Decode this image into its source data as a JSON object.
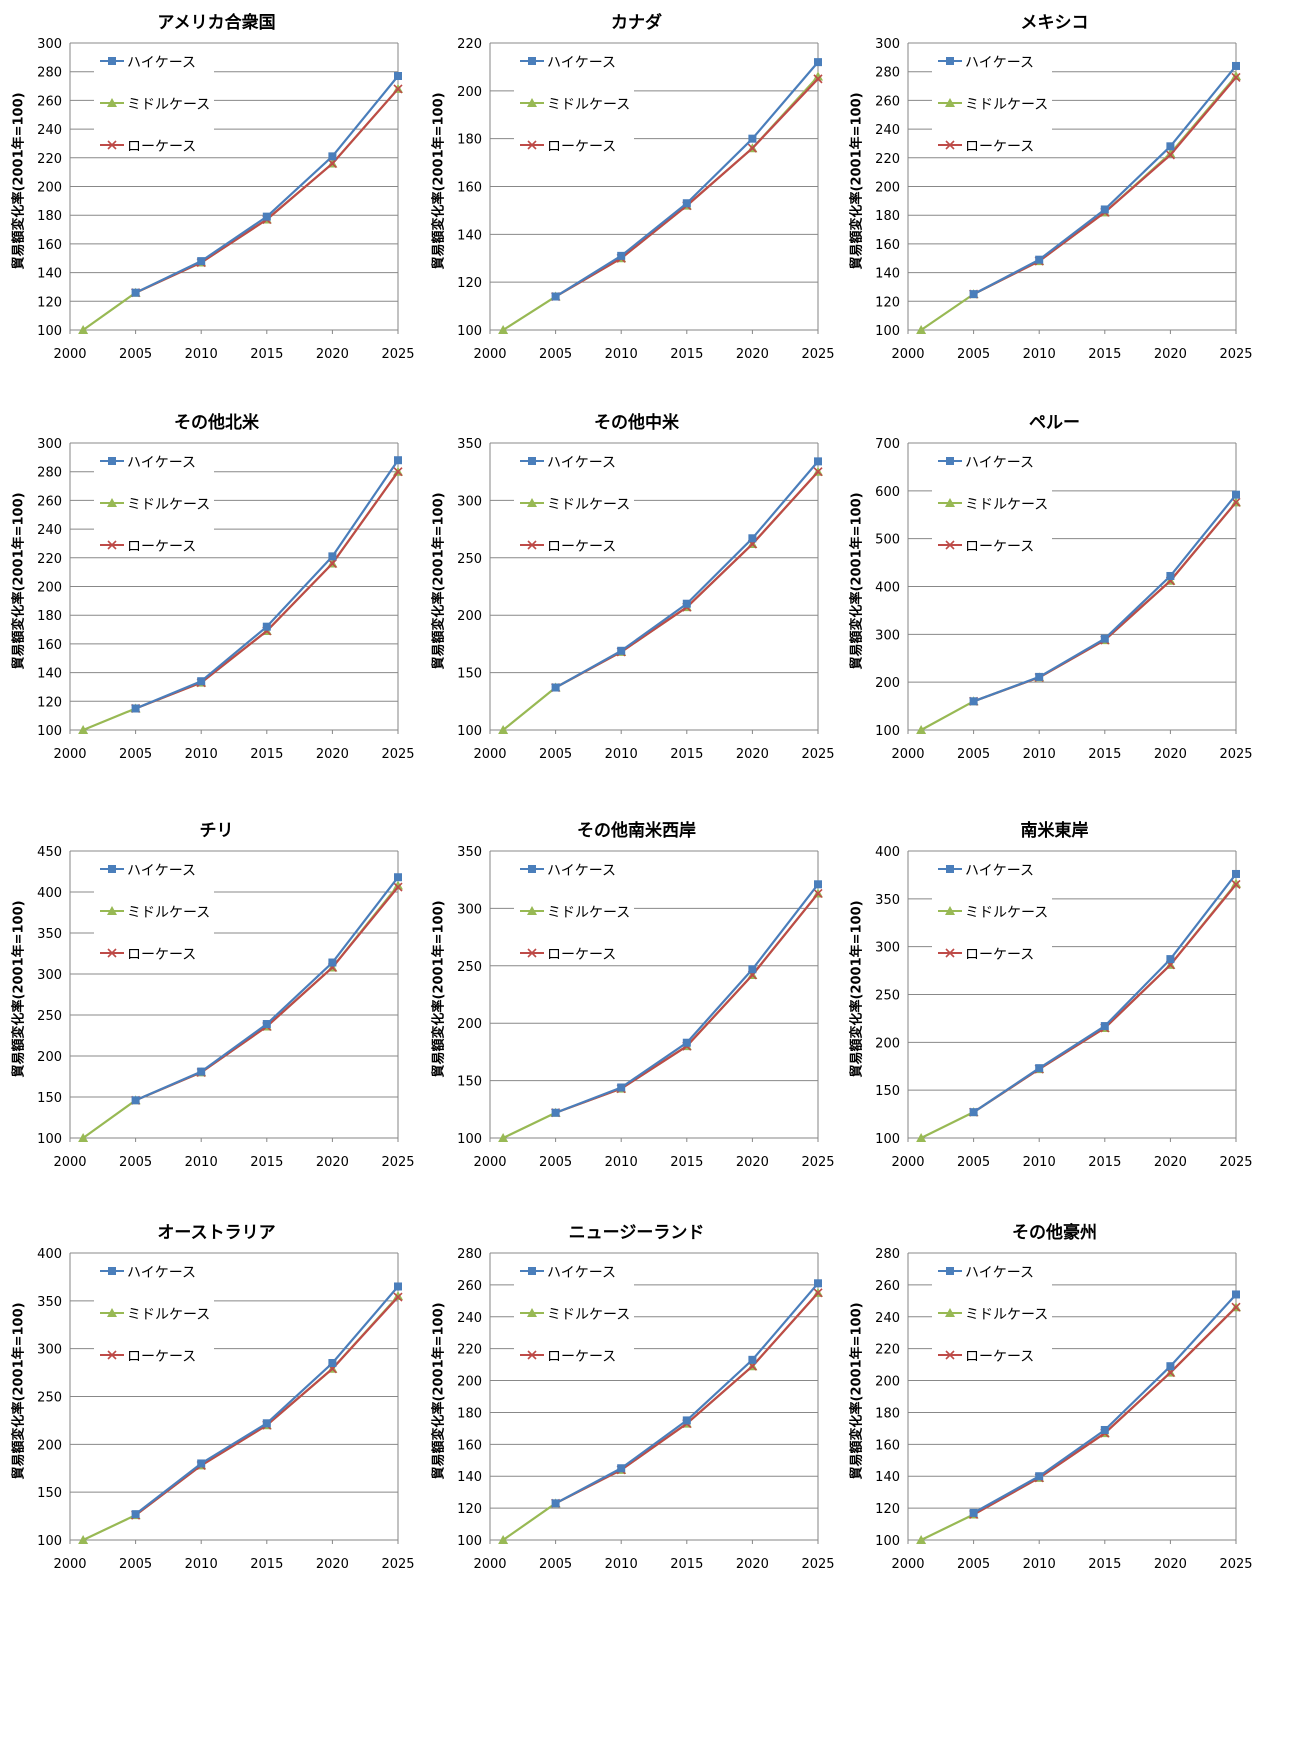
{
  "y_axis_label": "貿易額変化率(2001年=100)",
  "legend": {
    "high": "ハイケース",
    "middle": "ミドルケース",
    "low": "ローケース"
  },
  "colors": {
    "high": "#4A7EBB",
    "middle": "#98B954",
    "low": "#BE4B48",
    "grid": "#888888",
    "axis": "#868686"
  },
  "chart_data": [
    {
      "type": "line",
      "title": "アメリカ合衆国",
      "ylabel": "貿易額変化率(2001年=100)",
      "xlim": [
        2000,
        2025
      ],
      "ylim": [
        100,
        300
      ],
      "yticks": [
        100,
        120,
        140,
        160,
        180,
        200,
        220,
        240,
        260,
        280,
        300
      ],
      "xticks": [
        2000,
        2005,
        2010,
        2015,
        2020,
        2025
      ],
      "grid": true,
      "legend_position": "top-left",
      "series": [
        {
          "name": "ハイケース",
          "x": [
            2005,
            2010,
            2015,
            2020,
            2025
          ],
          "values": [
            126,
            148,
            179,
            221,
            277
          ]
        },
        {
          "name": "ミドルケース",
          "x": [
            2001,
            2005,
            2010,
            2015,
            2020,
            2025
          ],
          "values": [
            100,
            126,
            147,
            177,
            216,
            268
          ]
        },
        {
          "name": "ローケース",
          "x": [
            2005,
            2010,
            2015,
            2020,
            2025
          ],
          "values": [
            126,
            147,
            177,
            216,
            268
          ]
        }
      ]
    },
    {
      "type": "line",
      "title": "カナダ",
      "ylabel": "貿易額変化率(2001年=100)",
      "xlim": [
        2000,
        2025
      ],
      "ylim": [
        100,
        220
      ],
      "yticks": [
        100,
        120,
        140,
        160,
        180,
        200,
        220
      ],
      "xticks": [
        2000,
        2005,
        2010,
        2015,
        2020,
        2025
      ],
      "grid": true,
      "legend_position": "top-left",
      "series": [
        {
          "name": "ハイケース",
          "x": [
            2005,
            2010,
            2015,
            2020,
            2025
          ],
          "values": [
            114,
            131,
            153,
            180,
            212
          ]
        },
        {
          "name": "ミドルケース",
          "x": [
            2001,
            2005,
            2010,
            2015,
            2020,
            2025
          ],
          "values": [
            100,
            114,
            130,
            152,
            176,
            206
          ]
        },
        {
          "name": "ローケース",
          "x": [
            2005,
            2010,
            2015,
            2020,
            2025
          ],
          "values": [
            114,
            130,
            152,
            176,
            205
          ]
        }
      ]
    },
    {
      "type": "line",
      "title": "メキシコ",
      "ylabel": "貿易額変化率(2001年=100)",
      "xlim": [
        2000,
        2025
      ],
      "ylim": [
        100,
        300
      ],
      "yticks": [
        100,
        120,
        140,
        160,
        180,
        200,
        220,
        240,
        260,
        280,
        300
      ],
      "xticks": [
        2000,
        2005,
        2010,
        2015,
        2020,
        2025
      ],
      "grid": true,
      "legend_position": "top-left",
      "series": [
        {
          "name": "ハイケース",
          "x": [
            2005,
            2010,
            2015,
            2020,
            2025
          ],
          "values": [
            125,
            149,
            184,
            228,
            284
          ]
        },
        {
          "name": "ミドルケース",
          "x": [
            2001,
            2005,
            2010,
            2015,
            2020,
            2025
          ],
          "values": [
            100,
            125,
            148,
            182,
            223,
            277
          ]
        },
        {
          "name": "ローケース",
          "x": [
            2005,
            2010,
            2015,
            2020,
            2025
          ],
          "values": [
            125,
            148,
            182,
            222,
            276
          ]
        }
      ]
    },
    {
      "type": "line",
      "title": "その他北米",
      "ylabel": "貿易額変化率(2001年=100)",
      "xlim": [
        2000,
        2025
      ],
      "ylim": [
        100,
        300
      ],
      "yticks": [
        100,
        120,
        140,
        160,
        180,
        200,
        220,
        240,
        260,
        280,
        300
      ],
      "xticks": [
        2000,
        2005,
        2010,
        2015,
        2020,
        2025
      ],
      "grid": true,
      "legend_position": "top-left",
      "series": [
        {
          "name": "ハイケース",
          "x": [
            2005,
            2010,
            2015,
            2020,
            2025
          ],
          "values": [
            115,
            134,
            172,
            221,
            288
          ]
        },
        {
          "name": "ミドルケース",
          "x": [
            2001,
            2005,
            2010,
            2015,
            2020,
            2025
          ],
          "values": [
            100,
            115,
            133,
            169,
            216,
            280
          ]
        },
        {
          "name": "ローケース",
          "x": [
            2005,
            2010,
            2015,
            2020,
            2025
          ],
          "values": [
            115,
            133,
            169,
            216,
            280
          ]
        }
      ]
    },
    {
      "type": "line",
      "title": "その他中米",
      "ylabel": "貿易額変化率(2001年=100)",
      "xlim": [
        2000,
        2025
      ],
      "ylim": [
        100,
        350
      ],
      "yticks": [
        100,
        150,
        200,
        250,
        300,
        350
      ],
      "xticks": [
        2000,
        2005,
        2010,
        2015,
        2020,
        2025
      ],
      "grid": true,
      "legend_position": "top-left",
      "series": [
        {
          "name": "ハイケース",
          "x": [
            2005,
            2010,
            2015,
            2020,
            2025
          ],
          "values": [
            137,
            169,
            210,
            267,
            334
          ]
        },
        {
          "name": "ミドルケース",
          "x": [
            2001,
            2005,
            2010,
            2015,
            2020,
            2025
          ],
          "values": [
            100,
            137,
            168,
            207,
            262,
            325
          ]
        },
        {
          "name": "ローケース",
          "x": [
            2005,
            2010,
            2015,
            2020,
            2025
          ],
          "values": [
            137,
            168,
            207,
            262,
            325
          ]
        }
      ]
    },
    {
      "type": "line",
      "title": "ペルー",
      "ylabel": "貿易額変化率(2001年=100)",
      "xlim": [
        2000,
        2025
      ],
      "ylim": [
        100,
        700
      ],
      "yticks": [
        100,
        200,
        300,
        400,
        500,
        600,
        700
      ],
      "xticks": [
        2000,
        2005,
        2010,
        2015,
        2020,
        2025
      ],
      "grid": true,
      "legend_position": "top-left",
      "series": [
        {
          "name": "ハイケース",
          "x": [
            2005,
            2010,
            2015,
            2020,
            2025
          ],
          "values": [
            160,
            211,
            291,
            422,
            592
          ]
        },
        {
          "name": "ミドルケース",
          "x": [
            2001,
            2005,
            2010,
            2015,
            2020,
            2025
          ],
          "values": [
            100,
            160,
            210,
            288,
            412,
            576
          ]
        },
        {
          "name": "ローケース",
          "x": [
            2005,
            2010,
            2015,
            2020,
            2025
          ],
          "values": [
            160,
            210,
            288,
            412,
            576
          ]
        }
      ]
    },
    {
      "type": "line",
      "title": "チリ",
      "ylabel": "貿易額変化率(2001年=100)",
      "xlim": [
        2000,
        2025
      ],
      "ylim": [
        100,
        450
      ],
      "yticks": [
        100,
        150,
        200,
        250,
        300,
        350,
        400,
        450
      ],
      "xticks": [
        2000,
        2005,
        2010,
        2015,
        2020,
        2025
      ],
      "grid": true,
      "legend_position": "top-left",
      "series": [
        {
          "name": "ハイケース",
          "x": [
            2005,
            2010,
            2015,
            2020,
            2025
          ],
          "values": [
            146,
            181,
            239,
            314,
            418
          ]
        },
        {
          "name": "ミドルケース",
          "x": [
            2001,
            2005,
            2010,
            2015,
            2020,
            2025
          ],
          "values": [
            100,
            146,
            180,
            236,
            308,
            408
          ]
        },
        {
          "name": "ローケース",
          "x": [
            2005,
            2010,
            2015,
            2020,
            2025
          ],
          "values": [
            146,
            180,
            236,
            308,
            406
          ]
        }
      ]
    },
    {
      "type": "line",
      "title": "その他南米西岸",
      "ylabel": "貿易額変化率(2001年=100)",
      "xlim": [
        2000,
        2025
      ],
      "ylim": [
        100,
        350
      ],
      "yticks": [
        100,
        150,
        200,
        250,
        300,
        350
      ],
      "xticks": [
        2000,
        2005,
        2010,
        2015,
        2020,
        2025
      ],
      "grid": true,
      "legend_position": "top-left",
      "series": [
        {
          "name": "ハイケース",
          "x": [
            2005,
            2010,
            2015,
            2020,
            2025
          ],
          "values": [
            122,
            144,
            183,
            247,
            321
          ]
        },
        {
          "name": "ミドルケース",
          "x": [
            2001,
            2005,
            2010,
            2015,
            2020,
            2025
          ],
          "values": [
            100,
            122,
            143,
            180,
            242,
            313
          ]
        },
        {
          "name": "ローケース",
          "x": [
            2005,
            2010,
            2015,
            2020,
            2025
          ],
          "values": [
            122,
            143,
            180,
            242,
            313
          ]
        }
      ]
    },
    {
      "type": "line",
      "title": "南米東岸",
      "ylabel": "貿易額変化率(2001年=100)",
      "xlim": [
        2000,
        2025
      ],
      "ylim": [
        100,
        400
      ],
      "yticks": [
        100,
        150,
        200,
        250,
        300,
        350,
        400
      ],
      "xticks": [
        2000,
        2005,
        2010,
        2015,
        2020,
        2025
      ],
      "grid": true,
      "legend_position": "top-left",
      "series": [
        {
          "name": "ハイケース",
          "x": [
            2005,
            2010,
            2015,
            2020,
            2025
          ],
          "values": [
            127,
            173,
            217,
            287,
            376
          ]
        },
        {
          "name": "ミドルケース",
          "x": [
            2001,
            2005,
            2010,
            2015,
            2020,
            2025
          ],
          "values": [
            100,
            127,
            172,
            215,
            281,
            366
          ]
        },
        {
          "name": "ローケース",
          "x": [
            2005,
            2010,
            2015,
            2020,
            2025
          ],
          "values": [
            127,
            172,
            215,
            281,
            365
          ]
        }
      ]
    },
    {
      "type": "line",
      "title": "オーストラリア",
      "ylabel": "貿易額変化率(2001年=100)",
      "xlim": [
        2000,
        2025
      ],
      "ylim": [
        100,
        400
      ],
      "yticks": [
        100,
        150,
        200,
        250,
        300,
        350,
        400
      ],
      "xticks": [
        2000,
        2005,
        2010,
        2015,
        2020,
        2025
      ],
      "grid": true,
      "legend_position": "top-left",
      "series": [
        {
          "name": "ハイケース",
          "x": [
            2005,
            2010,
            2015,
            2020,
            2025
          ],
          "values": [
            127,
            180,
            222,
            285,
            365
          ]
        },
        {
          "name": "ミドルケース",
          "x": [
            2001,
            2005,
            2010,
            2015,
            2020,
            2025
          ],
          "values": [
            100,
            126,
            178,
            220,
            279,
            355
          ]
        },
        {
          "name": "ローケース",
          "x": [
            2005,
            2010,
            2015,
            2020,
            2025
          ],
          "values": [
            126,
            178,
            220,
            279,
            354
          ]
        }
      ]
    },
    {
      "type": "line",
      "title": "ニュージーランド",
      "ylabel": "貿易額変化率(2001年=100)",
      "xlim": [
        2000,
        2025
      ],
      "ylim": [
        100,
        280
      ],
      "yticks": [
        100,
        120,
        140,
        160,
        180,
        200,
        220,
        240,
        260,
        280
      ],
      "xticks": [
        2000,
        2005,
        2010,
        2015,
        2020,
        2025
      ],
      "grid": true,
      "legend_position": "top-left",
      "series": [
        {
          "name": "ハイケース",
          "x": [
            2005,
            2010,
            2015,
            2020,
            2025
          ],
          "values": [
            123,
            145,
            175,
            213,
            261
          ]
        },
        {
          "name": "ミドルケース",
          "x": [
            2001,
            2005,
            2010,
            2015,
            2020,
            2025
          ],
          "values": [
            100,
            123,
            144,
            173,
            209,
            255
          ]
        },
        {
          "name": "ローケース",
          "x": [
            2005,
            2010,
            2015,
            2020,
            2025
          ],
          "values": [
            123,
            144,
            173,
            209,
            255
          ]
        }
      ]
    },
    {
      "type": "line",
      "title": "その他豪州",
      "ylabel": "貿易額変化率(2001年=100)",
      "xlim": [
        2000,
        2025
      ],
      "ylim": [
        100,
        280
      ],
      "yticks": [
        100,
        120,
        140,
        160,
        180,
        200,
        220,
        240,
        260,
        280
      ],
      "xticks": [
        2000,
        2005,
        2010,
        2015,
        2020,
        2025
      ],
      "grid": true,
      "legend_position": "top-left",
      "series": [
        {
          "name": "ハイケース",
          "x": [
            2005,
            2010,
            2015,
            2020,
            2025
          ],
          "values": [
            117,
            140,
            169,
            209,
            254
          ]
        },
        {
          "name": "ミドルケース",
          "x": [
            2001,
            2005,
            2010,
            2015,
            2020,
            2025
          ],
          "values": [
            100,
            116,
            139,
            167,
            205,
            246
          ]
        },
        {
          "name": "ローケース",
          "x": [
            2005,
            2010,
            2015,
            2020,
            2025
          ],
          "values": [
            116,
            139,
            167,
            205,
            246
          ]
        }
      ]
    }
  ]
}
